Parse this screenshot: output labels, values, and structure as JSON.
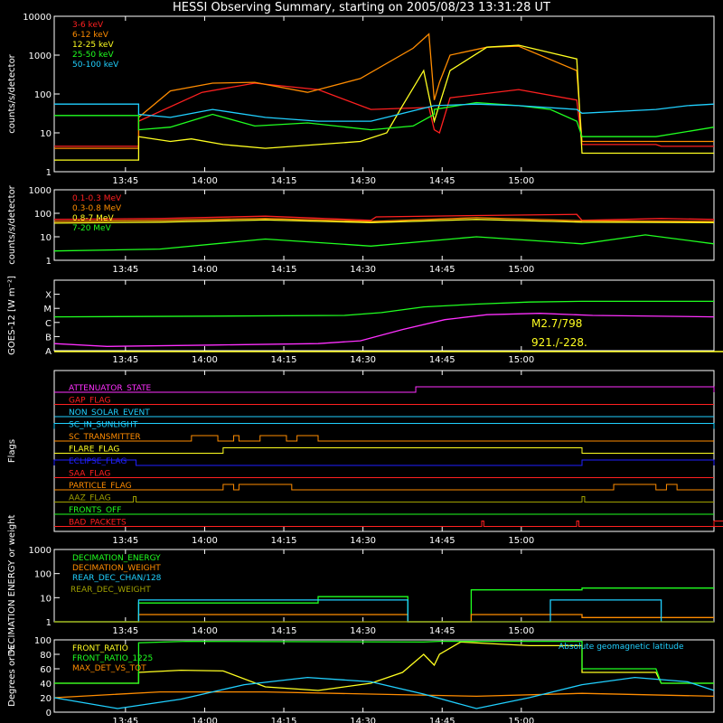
{
  "title": "HESSI Observing Summary, starting on 2005/08/23 13:31:28 UT",
  "time_ticks": [
    "13:45",
    "14:00",
    "14:15",
    "14:30",
    "14:45",
    "15:00"
  ],
  "chart_data": [
    {
      "type": "line",
      "name": "lightcurves-low",
      "ylabel": "counts/s/detector",
      "yscale": "log",
      "ylim": [
        1,
        10000
      ],
      "y_ticks": [
        "1",
        "10",
        "100",
        "1000",
        "10000"
      ],
      "x_ticks": [
        "13:45",
        "14:00",
        "14:15",
        "14:30",
        "14:45",
        "15:00"
      ],
      "series": [
        {
          "name": "3-6 keV",
          "color": "#ff2020",
          "x": [
            0,
            16,
            16,
            28,
            38,
            50,
            60,
            71,
            72,
            73,
            75,
            88,
            99,
            100,
            114,
            115,
            125
          ],
          "y": [
            4.5,
            4.5,
            20,
            110,
            190,
            130,
            40,
            45,
            12,
            10,
            80,
            130,
            70,
            5,
            5,
            4.5,
            4.5
          ]
        },
        {
          "name": "6-12 keV",
          "color": "#ff8c00",
          "x": [
            0,
            16,
            16,
            22,
            30,
            38,
            48,
            58,
            68,
            71,
            72,
            73,
            75,
            82,
            88,
            99,
            100,
            114,
            125
          ],
          "y": [
            4,
            4,
            25,
            120,
            190,
            200,
            110,
            250,
            1500,
            3500,
            70,
            200,
            1000,
            1600,
            1700,
            400,
            6,
            6,
            6
          ]
        },
        {
          "name": "12-25 keV",
          "color": "#ffff20",
          "x": [
            0,
            16,
            16,
            22,
            26,
            32,
            40,
            50,
            58,
            63,
            66,
            70,
            72,
            75,
            82,
            88,
            99,
            100,
            114,
            125
          ],
          "y": [
            2,
            2,
            8,
            6,
            7,
            5,
            4,
            5,
            6,
            10,
            50,
            400,
            20,
            400,
            1600,
            1800,
            800,
            3,
            3,
            3
          ]
        },
        {
          "name": "25-50 keV",
          "color": "#20ff20",
          "x": [
            0,
            16,
            16,
            22,
            30,
            38,
            48,
            60,
            68,
            72,
            72,
            80,
            88,
            94,
            99,
            100,
            114,
            125
          ],
          "y": [
            28,
            28,
            12,
            14,
            30,
            15,
            18,
            12,
            15,
            30,
            40,
            60,
            50,
            40,
            20,
            8,
            8,
            14
          ]
        },
        {
          "name": "50-100 keV",
          "color": "#20d0ff",
          "x": [
            0,
            16,
            16,
            22,
            30,
            40,
            50,
            60,
            72,
            80,
            88,
            99,
            100,
            114,
            120,
            125
          ],
          "y": [
            55,
            55,
            30,
            25,
            40,
            25,
            20,
            20,
            50,
            55,
            50,
            40,
            32,
            40,
            50,
            55
          ]
        }
      ]
    },
    {
      "type": "line",
      "name": "lightcurves-high",
      "ylabel": "counts/s/detector",
      "yscale": "log",
      "ylim": [
        1,
        1000
      ],
      "y_ticks": [
        "1",
        "10",
        "100",
        "1000"
      ],
      "x_ticks": [
        "13:45",
        "14:00",
        "14:15",
        "14:30",
        "14:45",
        "15:00"
      ],
      "series": [
        {
          "name": "0.1-0.3 MeV",
          "color": "#ff2020",
          "x": [
            0,
            20,
            40,
            60,
            61,
            80,
            99,
            100,
            115,
            125
          ],
          "y": [
            55,
            60,
            75,
            50,
            70,
            80,
            90,
            50,
            60,
            55
          ]
        },
        {
          "name": "0.3-0.8 MeV",
          "color": "#ff8c00",
          "x": [
            0,
            20,
            40,
            60,
            80,
            100,
            125
          ],
          "y": [
            45,
            50,
            60,
            45,
            65,
            48,
            45
          ]
        },
        {
          "name": "0.8-7 MeV",
          "color": "#ffff20",
          "x": [
            0,
            20,
            40,
            60,
            80,
            100,
            125
          ],
          "y": [
            38,
            42,
            52,
            40,
            55,
            42,
            40
          ]
        },
        {
          "name": "7-20 MeV",
          "color": "#20ff20",
          "x": [
            0,
            20,
            40,
            60,
            80,
            100,
            112,
            125
          ],
          "y": [
            2.5,
            3,
            8,
            4,
            10,
            5,
            12,
            5
          ]
        }
      ]
    },
    {
      "type": "line",
      "name": "goes",
      "ylabel": "GOES-12 [W m⁻²]",
      "yscale": "log",
      "y_ticks": [
        "A",
        "B",
        "C",
        "M",
        "X"
      ],
      "x_ticks": [
        "13:45",
        "14:00",
        "14:15",
        "14:30",
        "14:45",
        "15:00"
      ],
      "annotations": [
        "M2.7/798",
        "921./-228."
      ],
      "series": [
        {
          "name": "GOES long",
          "color": "#20ff20",
          "x": [
            0,
            30,
            55,
            62,
            70,
            80,
            90,
            100,
            125
          ],
          "y": [
            -5.6,
            -5.55,
            -5.5,
            -5.3,
            -4.9,
            -4.7,
            -4.55,
            -4.5,
            -4.5
          ]
        },
        {
          "name": "GOES short",
          "color": "#ff30ff",
          "x": [
            0,
            10,
            30,
            50,
            58,
            66,
            74,
            82,
            92,
            102,
            125
          ],
          "y": [
            -7.5,
            -7.7,
            -7.6,
            -7.5,
            -7.3,
            -6.5,
            -5.8,
            -5.45,
            -5.35,
            -5.5,
            -5.6
          ]
        }
      ]
    },
    {
      "type": "line",
      "name": "flags",
      "ylabel": "Flags",
      "x_ticks": [
        "13:45",
        "14:00",
        "14:15",
        "14:30",
        "14:45",
        "15:00"
      ],
      "flags": [
        {
          "label": "ATTENUATOR_STATE",
          "color": "#ff30ff",
          "segments": [
            [
              68.5,
              125
            ]
          ]
        },
        {
          "label": "GAP_FLAG",
          "color": "#ff2020",
          "segments": []
        },
        {
          "label": "NON_SOLAR_EVENT",
          "color": "#20d0ff",
          "segments": []
        },
        {
          "label": "SC_IN_SUNLIGHT",
          "color": "#20d0ff",
          "segments": [
            [
              0,
              125
            ]
          ]
        },
        {
          "label": "SC_TRANSMITTER",
          "color": "#ff8c00",
          "segments": [
            [
              26,
              31
            ],
            [
              34,
              35
            ],
            [
              39,
              44
            ],
            [
              46,
              50
            ]
          ]
        },
        {
          "label": "FLARE_FLAG",
          "color": "#ffff20",
          "segments": [
            [
              32,
              100
            ]
          ]
        },
        {
          "label": "ECLIPSE_FLAG",
          "color": "#2020ff",
          "segments": [
            [
              0,
              15.5
            ],
            [
              100,
              125
            ]
          ]
        },
        {
          "label": "SAA_FLAG",
          "color": "#ff2020",
          "segments": []
        },
        {
          "label": "PARTICLE_FLAG",
          "color": "#ff8c00",
          "segments": [
            [
              32,
              34
            ],
            [
              35,
              45
            ],
            [
              106,
              114
            ],
            [
              116,
              118
            ]
          ]
        },
        {
          "label": "AAZ_FLAG",
          "color": "#a0a000",
          "segments": [
            [
              15,
              15.5
            ],
            [
              100,
              100.5
            ]
          ]
        },
        {
          "label": "FRONTS_OFF",
          "color": "#20ff20",
          "segments": []
        },
        {
          "label": "BAD_PACKETS",
          "color": "#ff2020",
          "segments": [
            [
              81,
              81.4
            ],
            [
              99,
              99.4
            ],
            [
              127,
              127.4
            ]
          ]
        }
      ]
    },
    {
      "type": "line",
      "name": "decimation",
      "ylabel": "DECIMATION ENERGY or weight",
      "yscale": "log",
      "ylim": [
        1,
        1000
      ],
      "y_ticks": [
        "1",
        "10",
        "100",
        "1000"
      ],
      "x_ticks": [
        "13:45",
        "14:00",
        "14:15",
        "14:30",
        "14:45",
        "15:00"
      ],
      "series": [
        {
          "name": "DECIMATION_ENERGY",
          "color": "#20ff20",
          "x": [
            0,
            16,
            16,
            50,
            50,
            67,
            67,
            79,
            79,
            100,
            100,
            125
          ],
          "y": [
            1,
            1,
            6,
            6,
            11,
            11,
            1,
            1,
            21,
            21,
            25,
            25
          ]
        },
        {
          "name": "DECIMATION_WEIGHT",
          "color": "#ff8c00",
          "x": [
            0,
            16,
            16,
            67,
            67,
            79,
            79,
            100,
            100,
            125
          ],
          "y": [
            1,
            1,
            2,
            2,
            1,
            1,
            2,
            2,
            1.5,
            1.5
          ]
        },
        {
          "name": "REAR_DEC_CHAN/128",
          "color": "#20d0ff",
          "x": [
            0,
            16,
            16,
            67,
            67,
            94,
            94,
            115,
            115,
            125
          ],
          "y": [
            1,
            1,
            8,
            8,
            1,
            1,
            8,
            8,
            1,
            1
          ]
        },
        {
          "name": "REAR_DEC_WEIGHT",
          "color": "#a0a000",
          "x": [
            0,
            125
          ],
          "y": [
            1,
            1
          ]
        }
      ]
    },
    {
      "type": "line",
      "name": "ratios",
      "ylabel": "Degrees or %",
      "ylim": [
        0,
        100
      ],
      "y_ticks": [
        "0",
        "20",
        "40",
        "60",
        "80",
        "100"
      ],
      "x_ticks": [
        "13:45",
        "14:00",
        "14:15",
        "14:30",
        "14:45",
        "15:00"
      ],
      "annotations": [
        "Absolute geomagnetic latitude"
      ],
      "series": [
        {
          "name": "FRONT_RATIO",
          "color": "#ffff20",
          "x": [
            0,
            16,
            16,
            24,
            32,
            40,
            50,
            60,
            66,
            70,
            72,
            73,
            77,
            82,
            90,
            100,
            100,
            114,
            115,
            125
          ],
          "y": [
            40,
            40,
            55,
            58,
            57,
            35,
            30,
            40,
            55,
            80,
            65,
            80,
            97,
            95,
            92,
            92,
            55,
            55,
            40,
            40
          ]
        },
        {
          "name": "FRONT_RATIO_1225",
          "color": "#20ff20",
          "x": [
            0,
            16,
            16,
            25,
            70,
            73,
            100,
            100,
            114,
            115,
            125
          ],
          "y": [
            40,
            40,
            96,
            98,
            97,
            98,
            98,
            60,
            60,
            40,
            40
          ]
        },
        {
          "name": "MAX_DET_VS_TOT",
          "color": "#ff8c00",
          "x": [
            0,
            20,
            40,
            60,
            80,
            100,
            125
          ],
          "y": [
            20,
            28,
            28,
            25,
            22,
            26,
            22
          ]
        },
        {
          "name": "Absolute geomagnetic latitude",
          "color": "#20d0ff",
          "x": [
            0,
            12,
            24,
            36,
            48,
            60,
            70,
            80,
            90,
            100,
            110,
            120,
            125
          ],
          "y": [
            20,
            5,
            18,
            38,
            48,
            42,
            25,
            5,
            20,
            38,
            48,
            42,
            30
          ]
        }
      ]
    }
  ]
}
